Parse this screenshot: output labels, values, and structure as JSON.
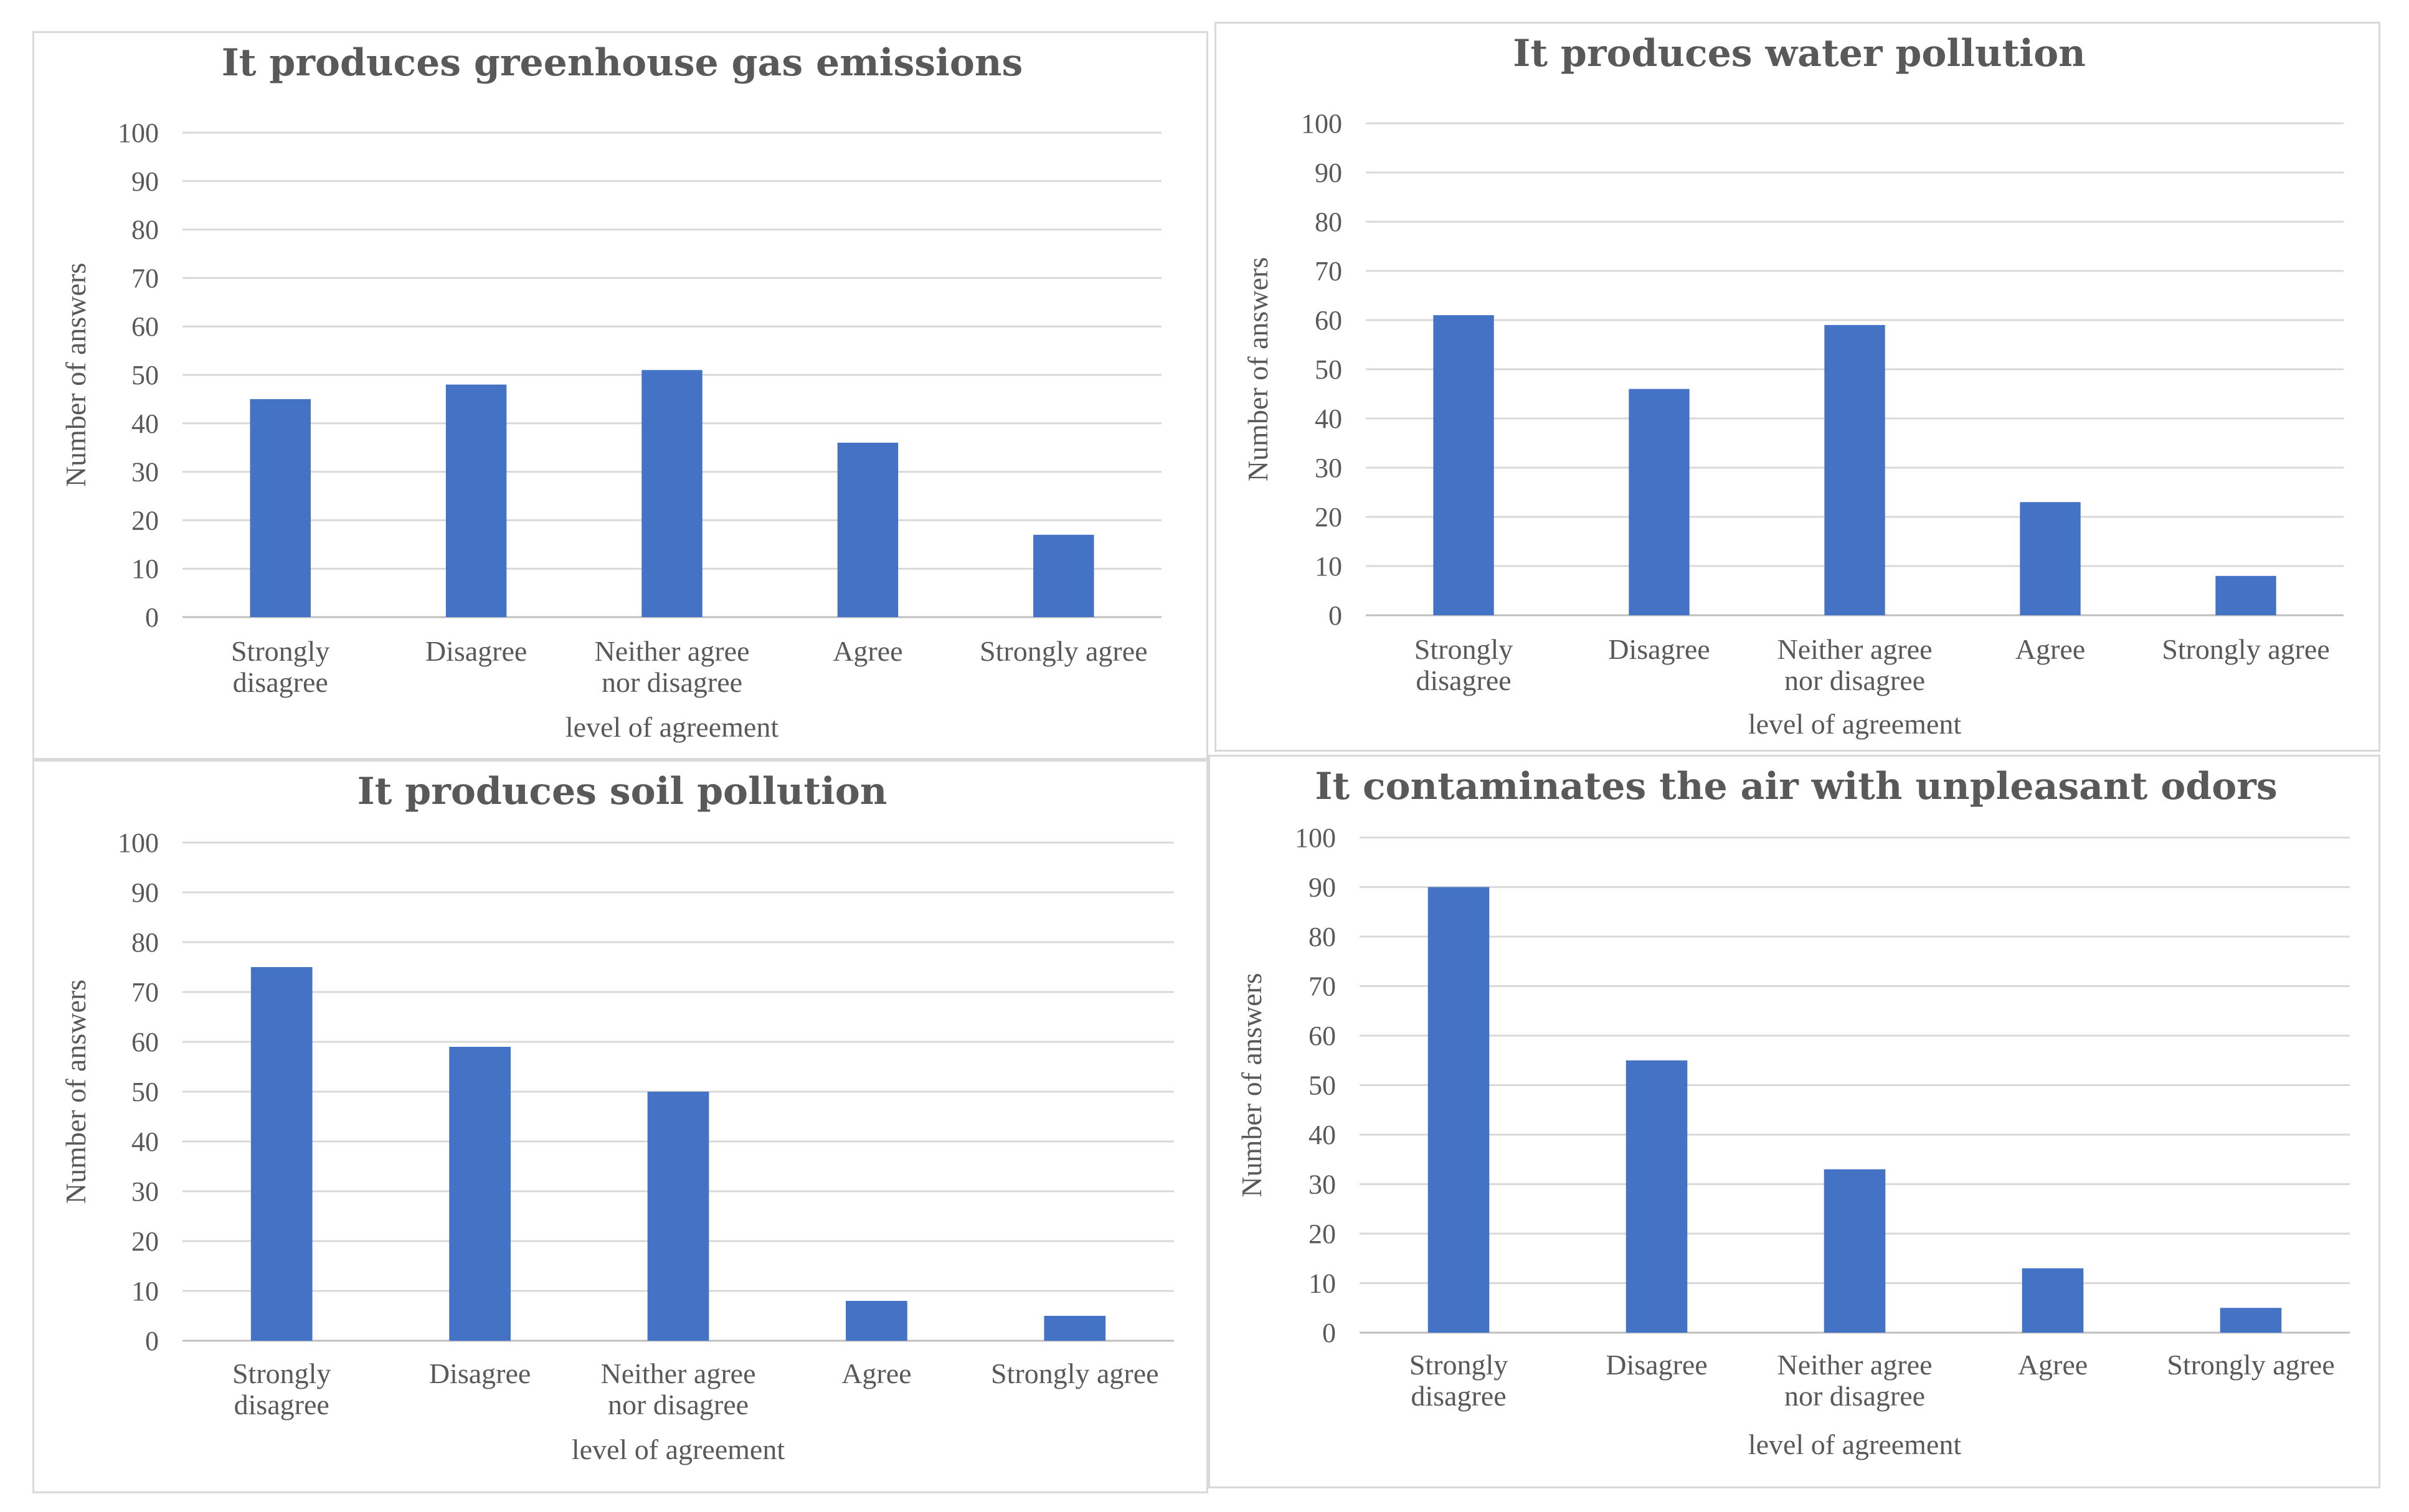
{
  "colors": {
    "bar": "#4472c4",
    "grid": "#d9d9d9",
    "text": "#595959"
  },
  "chart_data": [
    {
      "type": "bar",
      "title": "It produces greenhouse gas emissions",
      "categories": [
        "Strongly disagree",
        "Disagree",
        "Neither agree nor disagree",
        "Agree",
        "Strongly agree"
      ],
      "category_lines": [
        [
          "Strongly",
          "disagree"
        ],
        [
          "Disagree"
        ],
        [
          "Neither agree",
          "nor disagree"
        ],
        [
          "Agree"
        ],
        [
          "Strongly agree"
        ]
      ],
      "values": [
        45,
        48,
        51,
        36,
        17
      ],
      "xlabel": "level of agreement",
      "ylabel": "Number of answers",
      "ylim": [
        0,
        100
      ],
      "yticks": [
        "0",
        "10",
        "20",
        "30",
        "40",
        "50",
        "60",
        "70",
        "80",
        "90",
        "100"
      ],
      "grid": true,
      "legend": "none"
    },
    {
      "type": "bar",
      "title": "It produces water pollution",
      "categories": [
        "Strongly disagree",
        "Disagree",
        "Neither agree nor disagree",
        "Agree",
        "Strongly agree"
      ],
      "category_lines": [
        [
          "Strongly",
          "disagree"
        ],
        [
          "Disagree"
        ],
        [
          "Neither agree",
          "nor disagree"
        ],
        [
          "Agree"
        ],
        [
          "Strongly agree"
        ]
      ],
      "values": [
        61,
        46,
        59,
        23,
        8
      ],
      "xlabel": "level of agreement",
      "ylabel": "Number of answers",
      "ylim": [
        0,
        100
      ],
      "yticks": [
        "0",
        "10",
        "20",
        "30",
        "40",
        "50",
        "60",
        "70",
        "80",
        "90",
        "100"
      ],
      "grid": true,
      "legend": "none"
    },
    {
      "type": "bar",
      "title": "It produces soil pollution",
      "categories": [
        "Strongly disagree",
        "Disagree",
        "Neither agree nor disagree",
        "Agree",
        "Strongly agree"
      ],
      "category_lines": [
        [
          "Strongly",
          "disagree"
        ],
        [
          "Disagree"
        ],
        [
          "Neither agree",
          "nor disagree"
        ],
        [
          "Agree"
        ],
        [
          "Strongly agree"
        ]
      ],
      "values": [
        75,
        59,
        50,
        8,
        5
      ],
      "xlabel": "level of agreement",
      "ylabel": "Number of answers",
      "ylim": [
        0,
        100
      ],
      "yticks": [
        "0",
        "10",
        "20",
        "30",
        "40",
        "50",
        "60",
        "70",
        "80",
        "90",
        "100"
      ],
      "grid": true,
      "legend": "none"
    },
    {
      "type": "bar",
      "title": "It contaminates the air with unpleasant odors",
      "categories": [
        "Strongly disagree",
        "Disagree",
        "Neither agree nor disagree",
        "Agree",
        "Strongly agree"
      ],
      "category_lines": [
        [
          "Strongly",
          "disagree"
        ],
        [
          "Disagree"
        ],
        [
          "Neither agree",
          "nor disagree"
        ],
        [
          "Agree"
        ],
        [
          "Strongly agree"
        ]
      ],
      "values": [
        90,
        55,
        33,
        13,
        5
      ],
      "xlabel": "level of agreement",
      "ylabel": "Number of answers",
      "ylim": [
        0,
        100
      ],
      "yticks": [
        "0",
        "10",
        "20",
        "30",
        "40",
        "50",
        "60",
        "70",
        "80",
        "90",
        "100"
      ],
      "grid": true,
      "legend": "none"
    }
  ]
}
